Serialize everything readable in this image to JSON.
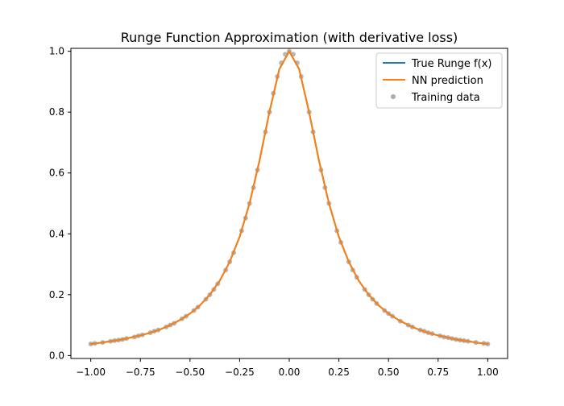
{
  "chart_data": {
    "type": "line",
    "title": "Runge Function Approximation (with derivative loss)",
    "xlabel": "",
    "ylabel": "",
    "xlim": [
      -1.1,
      1.1
    ],
    "ylim": [
      -0.0096,
      1.0096
    ],
    "x_ticks": [
      -1.0,
      -0.75,
      -0.5,
      -0.25,
      0.0,
      0.25,
      0.5,
      0.75,
      1.0
    ],
    "x_tick_labels": [
      "−1.00",
      "−0.75",
      "−0.50",
      "−0.25",
      "0.00",
      "0.25",
      "0.50",
      "0.75",
      "1.00"
    ],
    "y_ticks": [
      0.0,
      0.2,
      0.4,
      0.6,
      0.8,
      1.0
    ],
    "y_tick_labels": [
      "0.0",
      "0.2",
      "0.4",
      "0.6",
      "0.8",
      "1.0"
    ],
    "grid": false,
    "legend_position": "upper right",
    "series": [
      {
        "name": "True Runge f(x)",
        "kind": "line",
        "color": "#1f77b4",
        "x": [
          -1.0,
          -0.95,
          -0.9,
          -0.85,
          -0.8,
          -0.75,
          -0.7,
          -0.65,
          -0.6,
          -0.55,
          -0.5,
          -0.45,
          -0.4,
          -0.35,
          -0.3,
          -0.25,
          -0.2,
          -0.15,
          -0.1,
          -0.05,
          0.0,
          0.05,
          0.1,
          0.15,
          0.2,
          0.25,
          0.3,
          0.35,
          0.4,
          0.45,
          0.5,
          0.55,
          0.6,
          0.65,
          0.7,
          0.75,
          0.8,
          0.85,
          0.9,
          0.95,
          1.0
        ],
        "y": [
          0.038,
          0.042,
          0.047,
          0.052,
          0.059,
          0.066,
          0.075,
          0.086,
          0.1,
          0.117,
          0.138,
          0.165,
          0.2,
          0.246,
          0.308,
          0.39,
          0.5,
          0.64,
          0.8,
          0.941,
          1.0,
          0.941,
          0.8,
          0.64,
          0.5,
          0.39,
          0.308,
          0.246,
          0.2,
          0.165,
          0.138,
          0.117,
          0.1,
          0.086,
          0.075,
          0.066,
          0.059,
          0.052,
          0.047,
          0.042,
          0.038
        ]
      },
      {
        "name": "NN prediction",
        "kind": "line",
        "color": "#ff7f0e",
        "x": [
          -1.0,
          -0.95,
          -0.9,
          -0.85,
          -0.8,
          -0.75,
          -0.7,
          -0.65,
          -0.6,
          -0.55,
          -0.5,
          -0.45,
          -0.4,
          -0.35,
          -0.3,
          -0.25,
          -0.2,
          -0.15,
          -0.1,
          -0.05,
          0.0,
          0.05,
          0.1,
          0.15,
          0.2,
          0.25,
          0.3,
          0.35,
          0.4,
          0.45,
          0.5,
          0.55,
          0.6,
          0.65,
          0.7,
          0.75,
          0.8,
          0.85,
          0.9,
          0.95,
          1.0
        ],
        "y": [
          0.038,
          0.042,
          0.047,
          0.052,
          0.059,
          0.066,
          0.075,
          0.086,
          0.1,
          0.117,
          0.138,
          0.165,
          0.2,
          0.246,
          0.308,
          0.39,
          0.5,
          0.64,
          0.8,
          0.941,
          1.0,
          0.941,
          0.8,
          0.64,
          0.5,
          0.39,
          0.308,
          0.246,
          0.2,
          0.165,
          0.138,
          0.117,
          0.1,
          0.086,
          0.075,
          0.066,
          0.059,
          0.052,
          0.047,
          0.042,
          0.038
        ]
      },
      {
        "name": "Training data",
        "kind": "scatter",
        "color": "#aaaaaa",
        "x": [
          -1.0,
          -0.98,
          -0.94,
          -0.9,
          -0.88,
          -0.86,
          -0.84,
          -0.82,
          -0.78,
          -0.76,
          -0.74,
          -0.7,
          -0.68,
          -0.66,
          -0.62,
          -0.6,
          -0.58,
          -0.54,
          -0.52,
          -0.48,
          -0.46,
          -0.42,
          -0.4,
          -0.38,
          -0.36,
          -0.32,
          -0.3,
          -0.28,
          -0.24,
          -0.22,
          -0.2,
          -0.18,
          -0.16,
          -0.12,
          -0.1,
          -0.08,
          -0.06,
          -0.04,
          -0.02,
          0.0,
          0.02,
          0.04,
          0.06,
          0.1,
          0.12,
          0.16,
          0.18,
          0.2,
          0.24,
          0.26,
          0.3,
          0.32,
          0.34,
          0.38,
          0.4,
          0.42,
          0.44,
          0.48,
          0.5,
          0.52,
          0.56,
          0.6,
          0.62,
          0.66,
          0.68,
          0.7,
          0.72,
          0.76,
          0.78,
          0.8,
          0.82,
          0.84,
          0.86,
          0.88,
          0.9,
          0.94,
          0.98,
          1.0
        ],
        "y": [
          0.038,
          0.04,
          0.043,
          0.047,
          0.049,
          0.051,
          0.053,
          0.056,
          0.061,
          0.065,
          0.068,
          0.075,
          0.08,
          0.084,
          0.094,
          0.1,
          0.106,
          0.121,
          0.129,
          0.148,
          0.159,
          0.185,
          0.2,
          0.217,
          0.236,
          0.281,
          0.308,
          0.338,
          0.41,
          0.452,
          0.5,
          0.552,
          0.61,
          0.735,
          0.8,
          0.862,
          0.917,
          0.962,
          0.99,
          1.0,
          0.99,
          0.962,
          0.917,
          0.8,
          0.735,
          0.61,
          0.552,
          0.5,
          0.41,
          0.372,
          0.308,
          0.281,
          0.257,
          0.217,
          0.2,
          0.185,
          0.171,
          0.148,
          0.138,
          0.129,
          0.113,
          0.1,
          0.094,
          0.084,
          0.08,
          0.075,
          0.072,
          0.065,
          0.061,
          0.059,
          0.056,
          0.053,
          0.051,
          0.049,
          0.047,
          0.043,
          0.04,
          0.038
        ]
      }
    ]
  }
}
